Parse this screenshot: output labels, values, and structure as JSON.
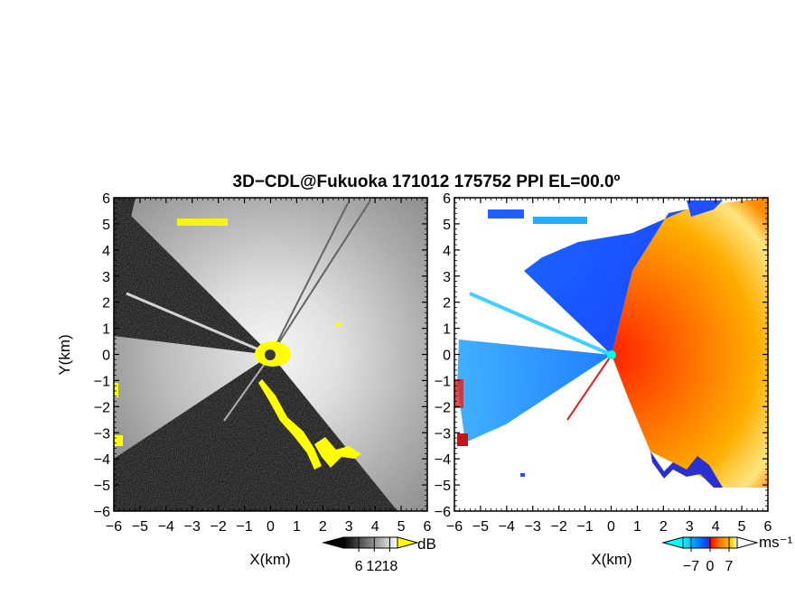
{
  "title": "3D−CDL@Fukuoka 171012 175752 PPI EL=00.0º",
  "chart_data": [
    {
      "type": "heatmap",
      "panel": "left",
      "quantity": "SNR",
      "xlabel": "X(km)",
      "ylabel": "Y(km)",
      "xlim": [
        -6,
        6
      ],
      "ylim": [
        -6,
        6
      ],
      "x_ticks": [
        -6,
        -5,
        -4,
        -3,
        -2,
        -1,
        0,
        1,
        2,
        3,
        4,
        5,
        6
      ],
      "y_ticks": [
        -6,
        -5,
        -4,
        -3,
        -2,
        -1,
        0,
        1,
        2,
        3,
        4,
        5,
        6
      ],
      "x_tick_labels": [
        "−6",
        "−5",
        "−4",
        "−3",
        "−2",
        "−1",
        "0",
        "1",
        "2",
        "3",
        "4",
        "5",
        "6"
      ],
      "y_tick_labels": [
        "−6",
        "−5",
        "−4",
        "−3",
        "−2",
        "−1",
        "0",
        "1",
        "2",
        "3",
        "4",
        "5",
        "6"
      ],
      "colorbar": {
        "unit": "dB",
        "ticks": [
          6,
          12,
          18
        ],
        "tick_labels": [
          "6",
          "12",
          "18"
        ],
        "range": [
          0,
          21
        ],
        "colors": [
          "#000000",
          "#ffffff"
        ],
        "overflow_color": "#ffff00"
      }
    },
    {
      "type": "heatmap",
      "panel": "right",
      "quantity": "Doppler velocity",
      "xlabel": "X(km)",
      "xlim": [
        -6,
        6
      ],
      "ylim": [
        -6,
        6
      ],
      "x_ticks": [
        -6,
        -5,
        -4,
        -3,
        -2,
        -1,
        0,
        1,
        2,
        3,
        4,
        5,
        6
      ],
      "y_ticks": [
        -6,
        -5,
        -4,
        -3,
        -2,
        -1,
        0,
        1,
        2,
        3,
        4,
        5,
        6
      ],
      "x_tick_labels": [
        "−6",
        "−5",
        "−4",
        "−3",
        "−2",
        "−1",
        "0",
        "1",
        "2",
        "3",
        "4",
        "5",
        "6"
      ],
      "y_tick_labels": [
        "−6",
        "−5",
        "−4",
        "−3",
        "−2",
        "−1",
        "0",
        "1",
        "2",
        "3",
        "4",
        "5",
        "6"
      ],
      "colorbar": {
        "unit": "ms⁻¹",
        "ticks": [
          -7,
          0,
          7
        ],
        "tick_labels": [
          "−7",
          "0",
          "7"
        ],
        "range": [
          -10,
          10
        ],
        "colors": [
          "#00ffff",
          "#00a0ff",
          "#0040ff",
          "#ff0000",
          "#ff8000",
          "#ffd000",
          "#ffffff"
        ]
      }
    }
  ]
}
